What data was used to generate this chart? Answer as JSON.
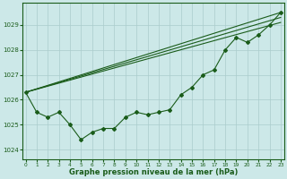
{
  "xlabel": "Graphe pression niveau de la mer (hPa)",
  "bg_color": "#cce8e8",
  "plot_bg_color": "#cce8e8",
  "grid_color": "#aacccc",
  "line_color": "#1a5c1a",
  "text_color": "#1a5c1a",
  "xlim": [
    -0.3,
    23.3
  ],
  "ylim": [
    1023.6,
    1029.9
  ],
  "yticks": [
    1024,
    1025,
    1026,
    1027,
    1028,
    1029
  ],
  "xticks": [
    0,
    1,
    2,
    3,
    4,
    5,
    6,
    7,
    8,
    9,
    10,
    11,
    12,
    13,
    14,
    15,
    16,
    17,
    18,
    19,
    20,
    21,
    22,
    23
  ],
  "series_with_markers": [
    [
      1026.3,
      1025.5,
      1025.3,
      1025.5,
      1025.0,
      1024.4,
      1024.7,
      1024.85,
      1024.85,
      1025.3,
      1025.5,
      1025.4,
      1025.5,
      1025.6,
      1026.2,
      1026.5,
      1027.0,
      1027.2,
      1028.0,
      1028.5,
      1028.3,
      1028.6,
      1029.0,
      1029.5
    ]
  ],
  "series_straight": [
    {
      "x0": 0,
      "y0": 1026.3,
      "x1": 23,
      "y1": 1029.5
    },
    {
      "x0": 0,
      "y0": 1026.3,
      "x1": 23,
      "y1": 1029.3
    },
    {
      "x0": 0,
      "y0": 1026.3,
      "x1": 23,
      "y1": 1029.1
    }
  ],
  "marker": "D",
  "markersize": 2.0,
  "linewidth": 0.8
}
